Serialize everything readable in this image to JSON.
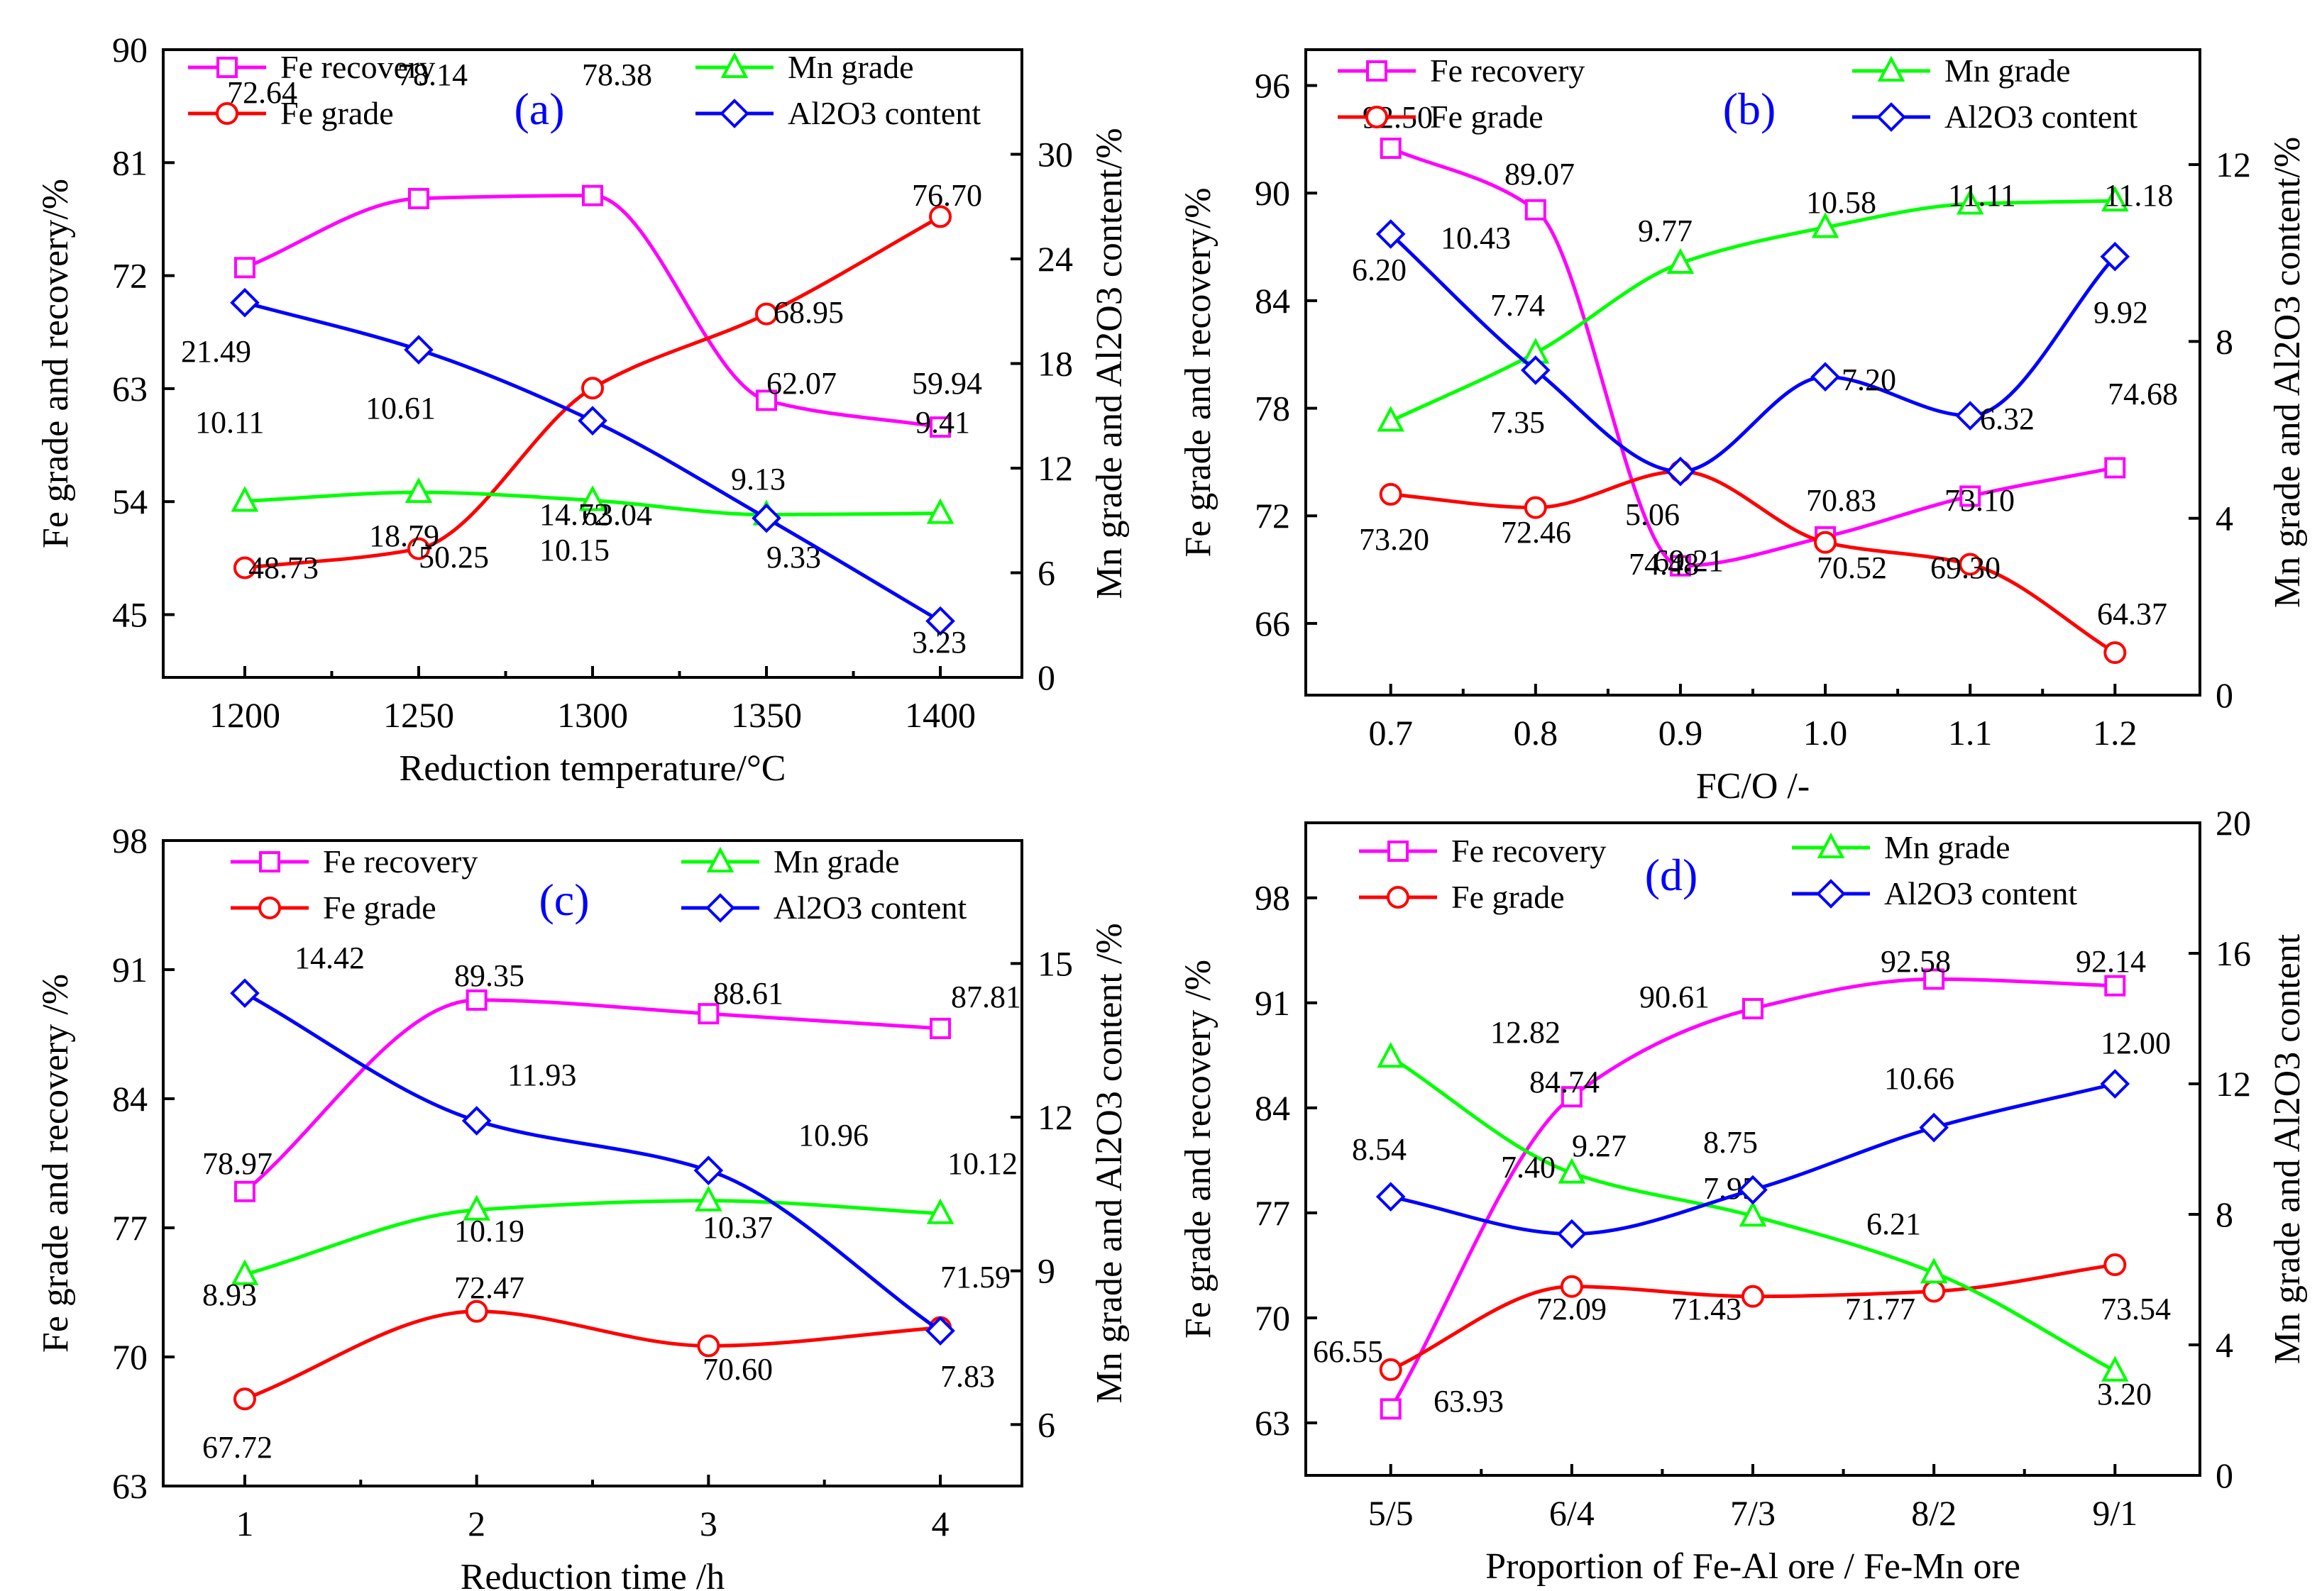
{
  "colors": {
    "fe_recovery": "#ff00ff",
    "fe_grade": "#ff0000",
    "mn_grade": "#00ff00",
    "al2o3": "#0000ff",
    "panel_tag": "#0000ff"
  },
  "chart_data": [
    {
      "type": "line",
      "panel": "(a)",
      "xlabel": "Reduction temperature/°C",
      "ylabel_left": "Fe grade and recovery/%",
      "ylabel_right": "Mn grade and Al2O3 content/%",
      "x": [
        "1200",
        "1250",
        "1300",
        "1350",
        "1400"
      ],
      "ylim_left": [
        40,
        90
      ],
      "yticks_left": [
        "45",
        "54",
        "63",
        "72",
        "81",
        "90"
      ],
      "ylim_right": [
        0,
        36
      ],
      "yticks_right": [
        "0",
        "6",
        "12",
        "18",
        "24",
        "30"
      ],
      "series": [
        {
          "name": "Fe recovery",
          "axis": "left",
          "marker": "square",
          "color_key": "fe_recovery",
          "values": [
            72.64,
            78.14,
            78.38,
            62.07,
            59.94
          ],
          "labels": [
            "72.64",
            "78.14",
            "78.38",
            "62.07",
            "59.94"
          ]
        },
        {
          "name": "Fe grade",
          "axis": "left",
          "marker": "circle",
          "color_key": "fe_grade",
          "values": [
            48.73,
            50.25,
            63.04,
            68.95,
            76.7
          ],
          "labels": [
            "48.73",
            "50.25",
            "63.04",
            "68.95",
            "76.70"
          ]
        },
        {
          "name": "Mn grade",
          "axis": "right",
          "marker": "triangle",
          "color_key": "mn_grade",
          "values": [
            10.11,
            10.61,
            10.15,
            9.33,
            9.41
          ],
          "labels": [
            "10.11",
            "10.61",
            "10.15",
            "9.33",
            "9.41"
          ]
        },
        {
          "name": "Al2O3 content",
          "axis": "right",
          "marker": "diamond",
          "color_key": "al2o3",
          "values": [
            21.49,
            18.79,
            14.72,
            9.13,
            3.23
          ],
          "labels": [
            "21.49",
            "18.79",
            "14.72",
            "9.13",
            "3.23"
          ]
        }
      ]
    },
    {
      "type": "line",
      "panel": "(b)",
      "xlabel": "FC/O /-",
      "ylabel_left": "Fe grade and recovery/%",
      "ylabel_right": "Mn grade and Al2O3 content/%",
      "x": [
        "0.7",
        "0.8",
        "0.9",
        "1.0",
        "1.1",
        "1.2"
      ],
      "ylim_left": [
        62,
        98
      ],
      "yticks_left": [
        "66",
        "72",
        "78",
        "84",
        "90",
        "96"
      ],
      "ylim_right": [
        0,
        14.6
      ],
      "yticks_right": [
        "0",
        "4",
        "8",
        "12"
      ],
      "series": [
        {
          "name": "Fe recovery",
          "axis": "left",
          "marker": "square",
          "color_key": "fe_recovery",
          "values": [
            92.5,
            89.07,
            69.21,
            70.83,
            73.1,
            74.68
          ],
          "labels": [
            "92.50",
            "89.07",
            "69.21",
            "70.83",
            "73.10",
            "74.68"
          ]
        },
        {
          "name": "Fe grade",
          "axis": "left",
          "marker": "circle",
          "color_key": "fe_grade",
          "values": [
            73.2,
            72.46,
            74.48,
            70.52,
            69.3,
            64.37
          ],
          "labels": [
            "73.20",
            "72.46",
            "74.48",
            "70.52",
            "69.30",
            "64.37"
          ]
        },
        {
          "name": "Mn grade",
          "axis": "right",
          "marker": "triangle",
          "color_key": "mn_grade",
          "values": [
            6.2,
            7.74,
            9.77,
            10.58,
            11.11,
            11.18
          ],
          "labels": [
            "6.20",
            "7.74",
            "9.77",
            "10.58",
            "11.11",
            "11.18"
          ]
        },
        {
          "name": "Al2O3 content",
          "axis": "right",
          "marker": "diamond",
          "color_key": "al2o3",
          "values": [
            10.43,
            7.35,
            5.06,
            7.2,
            6.32,
            9.92
          ],
          "labels": [
            "10.43",
            "7.35",
            "5.06",
            "7.20",
            "6.32",
            "9.92"
          ]
        }
      ]
    },
    {
      "type": "line",
      "panel": "(c)",
      "xlabel": "Reduction time /h",
      "ylabel_left": "Fe grade and recovery /%",
      "ylabel_right": "Mn grade and Al2O3 content /%",
      "x": [
        "1",
        "2",
        "3",
        "4"
      ],
      "ylim_left": [
        63,
        98
      ],
      "yticks_left": [
        "63",
        "70",
        "77",
        "84",
        "91",
        "98"
      ],
      "ylim_right": [
        4.8,
        17.4
      ],
      "yticks_right": [
        "6",
        "9",
        "12",
        "15"
      ],
      "series": [
        {
          "name": "Fe recovery",
          "axis": "left",
          "marker": "square",
          "color_key": "fe_recovery",
          "values": [
            78.97,
            89.35,
            88.61,
            87.81
          ],
          "labels": [
            "78.97",
            "89.35",
            "88.61",
            "87.81"
          ]
        },
        {
          "name": "Fe grade",
          "axis": "left",
          "marker": "circle",
          "color_key": "fe_grade",
          "values": [
            67.72,
            72.47,
            70.6,
            71.59
          ],
          "labels": [
            "67.72",
            "72.47",
            "70.60",
            "71.59"
          ]
        },
        {
          "name": "Mn grade",
          "axis": "right",
          "marker": "triangle",
          "color_key": "mn_grade",
          "values": [
            8.93,
            10.19,
            10.37,
            10.12
          ],
          "labels": [
            "8.93",
            "10.19",
            "10.37",
            "10.12"
          ]
        },
        {
          "name": "Al2O3 content",
          "axis": "right",
          "marker": "diamond",
          "color_key": "al2o3",
          "values": [
            14.42,
            11.93,
            10.96,
            7.83
          ],
          "labels": [
            "14.42",
            "11.93",
            "10.96",
            "7.83"
          ]
        }
      ]
    },
    {
      "type": "line",
      "panel": "(d)",
      "xlabel": "Proportion of Fe-Al ore / Fe-Mn ore",
      "ylabel_left": "Fe grade and recovery /%",
      "ylabel_right": "Mn grade and Al2O3 content",
      "x": [
        "5/5",
        "6/4",
        "7/3",
        "8/2",
        "9/1"
      ],
      "ylim_left": [
        59.5,
        103
      ],
      "yticks_left": [
        "63",
        "70",
        "77",
        "84",
        "91",
        "98"
      ],
      "ylim_right": [
        0,
        20
      ],
      "yticks_right": [
        "0",
        "4",
        "8",
        "12",
        "16",
        "20"
      ],
      "series": [
        {
          "name": "Fe recovery",
          "axis": "left",
          "marker": "square",
          "color_key": "fe_recovery",
          "values": [
            63.93,
            84.74,
            90.61,
            92.58,
            92.14
          ],
          "labels": [
            "63.93",
            "84.74",
            "90.61",
            "92.58",
            "92.14"
          ]
        },
        {
          "name": "Fe grade",
          "axis": "left",
          "marker": "circle",
          "color_key": "fe_grade",
          "values": [
            66.55,
            72.09,
            71.43,
            71.77,
            73.54
          ],
          "labels": [
            "66.55",
            "72.09",
            "71.43",
            "71.77",
            "73.54"
          ]
        },
        {
          "name": "Mn grade",
          "axis": "right",
          "marker": "triangle",
          "color_key": "mn_grade",
          "values": [
            12.82,
            9.27,
            7.95,
            6.21,
            3.2
          ],
          "labels": [
            "12.82",
            "9.27",
            "7.95",
            "6.21",
            "3.20"
          ]
        },
        {
          "name": "Al2O3 content",
          "axis": "right",
          "marker": "diamond",
          "color_key": "al2o3",
          "values": [
            8.54,
            7.4,
            8.75,
            10.66,
            12.0
          ],
          "labels": [
            "8.54",
            "7.40",
            "8.75",
            "10.66",
            "12.00"
          ]
        }
      ]
    }
  ]
}
